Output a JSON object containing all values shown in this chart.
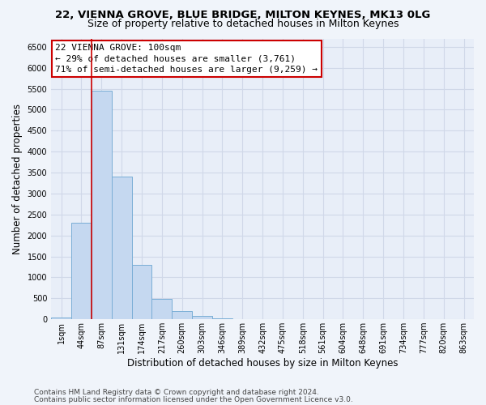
{
  "title_line1": "22, VIENNA GROVE, BLUE BRIDGE, MILTON KEYNES, MK13 0LG",
  "title_line2": "Size of property relative to detached houses in Milton Keynes",
  "xlabel": "Distribution of detached houses by size in Milton Keynes",
  "ylabel": "Number of detached properties",
  "categories": [
    "1sqm",
    "44sqm",
    "87sqm",
    "131sqm",
    "174sqm",
    "217sqm",
    "260sqm",
    "303sqm",
    "346sqm",
    "389sqm",
    "432sqm",
    "475sqm",
    "518sqm",
    "561sqm",
    "604sqm",
    "648sqm",
    "691sqm",
    "734sqm",
    "777sqm",
    "820sqm",
    "863sqm"
  ],
  "values": [
    50,
    2300,
    5450,
    3400,
    1300,
    480,
    200,
    80,
    30,
    5,
    2,
    1,
    0,
    0,
    0,
    0,
    0,
    0,
    0,
    0,
    0
  ],
  "bar_color": "#c5d8f0",
  "bar_edge_color": "#7aaed6",
  "vline_x_index": 2,
  "vline_color": "#cc0000",
  "ylim": [
    0,
    6700
  ],
  "yticks": [
    0,
    500,
    1000,
    1500,
    2000,
    2500,
    3000,
    3500,
    4000,
    4500,
    5000,
    5500,
    6000,
    6500
  ],
  "annotation_text": "22 VIENNA GROVE: 100sqm\n← 29% of detached houses are smaller (3,761)\n71% of semi-detached houses are larger (9,259) →",
  "annotation_box_color": "white",
  "annotation_box_edge": "#cc0000",
  "footer_line1": "Contains HM Land Registry data © Crown copyright and database right 2024.",
  "footer_line2": "Contains public sector information licensed under the Open Government Licence v3.0.",
  "bg_color": "#f0f4fa",
  "plot_bg_color": "#e8eef8",
  "grid_color": "#d0d8e8",
  "title_fontsize": 9.5,
  "subtitle_fontsize": 9,
  "label_fontsize": 8.5,
  "tick_fontsize": 7,
  "footer_fontsize": 6.5,
  "annotation_fontsize": 8
}
